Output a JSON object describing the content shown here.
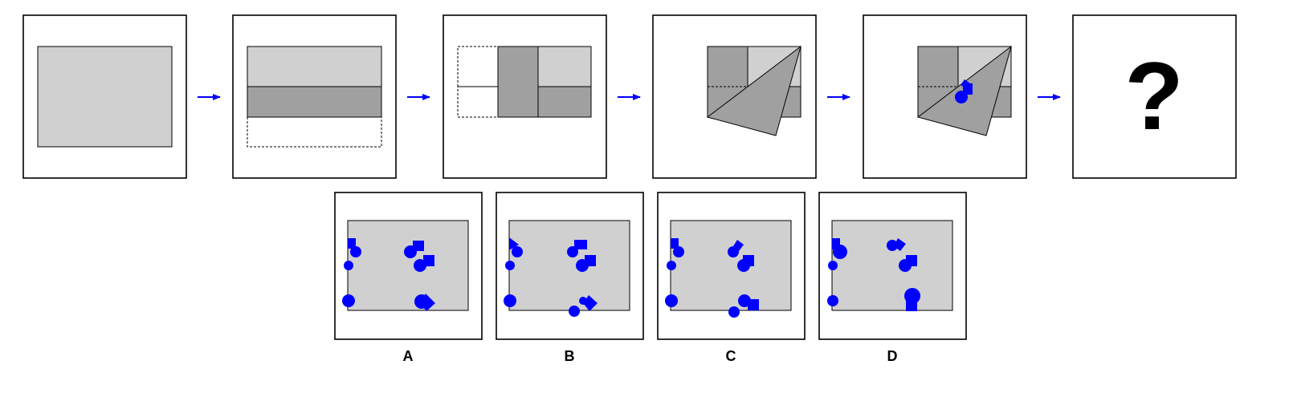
{
  "puzzle": {
    "question_mark": "?",
    "option_labels": [
      "A",
      "B",
      "C",
      "D"
    ]
  },
  "colors": {
    "paper": "#d0d0d0",
    "folded": "#a0a0a0",
    "punch": "#0000ff",
    "arrow": "#0000ff",
    "outline": "#000000"
  }
}
